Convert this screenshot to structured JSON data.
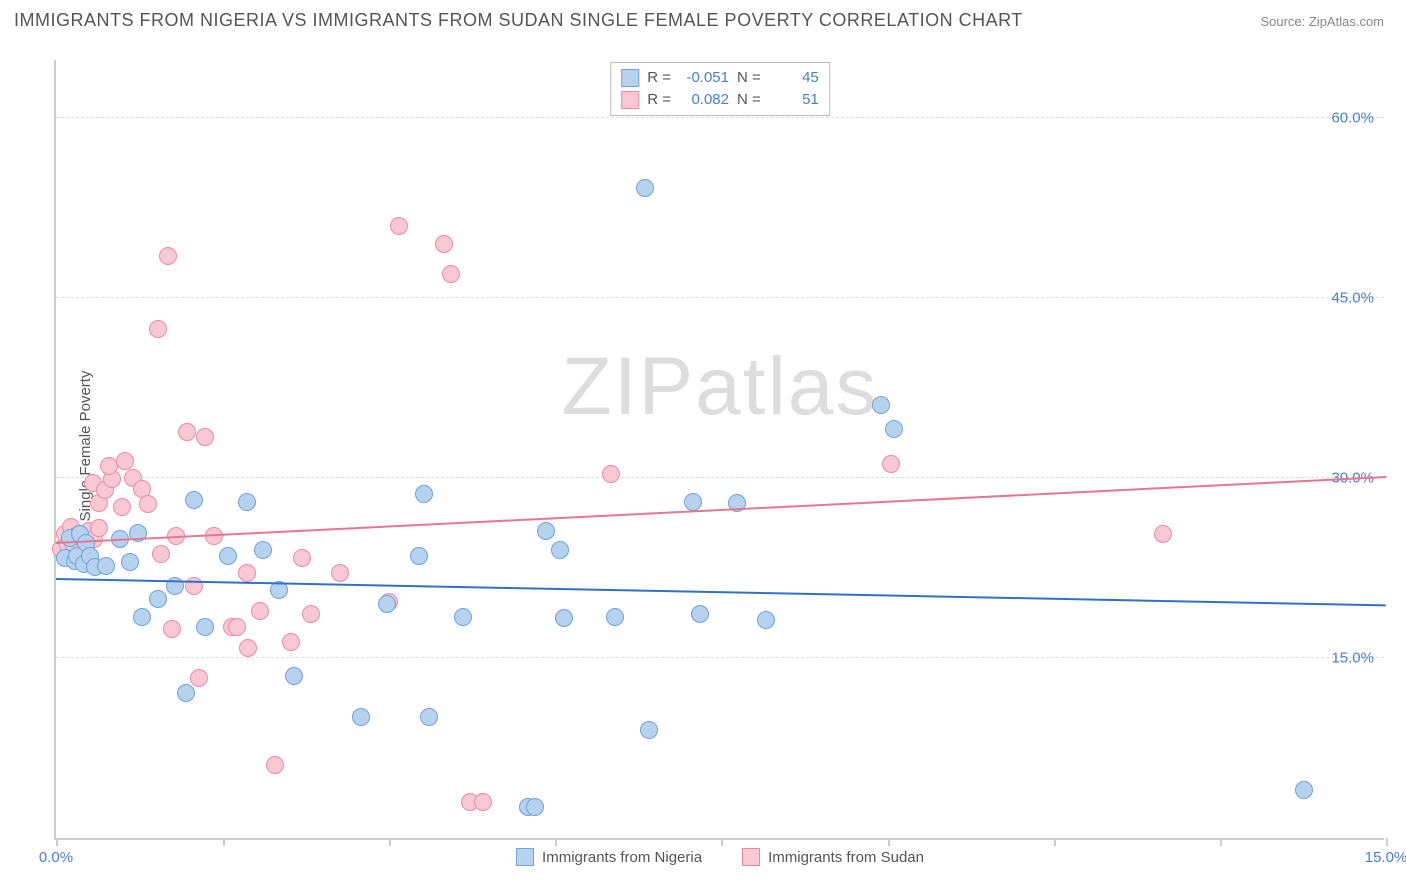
{
  "title": "IMMIGRANTS FROM NIGERIA VS IMMIGRANTS FROM SUDAN SINGLE FEMALE POVERTY CORRELATION CHART",
  "source_label": "Source: ZipAtlas.com",
  "ylabel": "Single Female Poverty",
  "watermark": "ZIPatlas",
  "chart": {
    "type": "scatter",
    "background_color": "#ffffff",
    "grid_color": "#dddddd",
    "border_color": "#cccccc",
    "tick_label_color": "#4a7ecc",
    "axis_label_color": "#555555",
    "xlim": [
      0,
      15
    ],
    "ylim": [
      0,
      65
    ],
    "xticks": [
      0,
      1.88,
      3.75,
      5.63,
      7.5,
      9.38,
      11.25,
      13.13,
      15
    ],
    "xtick_labels": {
      "0": "0.0%",
      "15": "15.0%"
    },
    "yticks": [
      15,
      30,
      45,
      60
    ],
    "ytick_labels": {
      "15": "15.0%",
      "30": "30.0%",
      "45": "45.0%",
      "60": "60.0%"
    },
    "point_radius": 9,
    "line_width": 2
  },
  "series": [
    {
      "name": "Immigrants from Nigeria",
      "fill": "#b7d2ef",
      "stroke": "#6ea3dd",
      "line_color": "#2f71c7",
      "R": "-0.051",
      "N": "45",
      "trend": {
        "x0": 0,
        "y0": 21.5,
        "x1": 15,
        "y1": 19.3
      },
      "points": [
        [
          0.1,
          23.3
        ],
        [
          0.16,
          25.0
        ],
        [
          0.21,
          23.1
        ],
        [
          0.24,
          23.5
        ],
        [
          0.27,
          25.3
        ],
        [
          0.32,
          22.8
        ],
        [
          0.34,
          24.6
        ],
        [
          0.38,
          23.5
        ],
        [
          0.44,
          22.6
        ],
        [
          0.56,
          22.7
        ],
        [
          0.72,
          24.9
        ],
        [
          0.83,
          23.0
        ],
        [
          0.97,
          18.4
        ],
        [
          1.15,
          19.9
        ],
        [
          1.34,
          21.0
        ],
        [
          1.47,
          12.1
        ],
        [
          1.56,
          28.2
        ],
        [
          1.68,
          17.6
        ],
        [
          1.94,
          23.5
        ],
        [
          2.15,
          28.0
        ],
        [
          2.33,
          24.0
        ],
        [
          2.51,
          20.7
        ],
        [
          2.68,
          13.5
        ],
        [
          3.44,
          10.1
        ],
        [
          3.73,
          19.5
        ],
        [
          4.09,
          23.5
        ],
        [
          4.15,
          28.7
        ],
        [
          4.21,
          10.1
        ],
        [
          4.59,
          18.4
        ],
        [
          5.32,
          2.6
        ],
        [
          5.4,
          2.6
        ],
        [
          5.53,
          25.6
        ],
        [
          5.68,
          24.0
        ],
        [
          5.73,
          18.3
        ],
        [
          6.3,
          18.4
        ],
        [
          6.64,
          54.2
        ],
        [
          6.69,
          9.0
        ],
        [
          7.18,
          28.0
        ],
        [
          7.26,
          18.7
        ],
        [
          7.68,
          27.9
        ],
        [
          8.01,
          18.2
        ],
        [
          9.3,
          36.1
        ],
        [
          9.45,
          34.1
        ],
        [
          14.07,
          4.0
        ],
        [
          0.92,
          25.4
        ]
      ]
    },
    {
      "name": "Immigrants from Sudan",
      "fill": "#f8c9d4",
      "stroke": "#ea8aa3",
      "line_color": "#e77790",
      "R": "0.082",
      "N": "51",
      "trend": {
        "x0": 0,
        "y0": 24.5,
        "x1": 15,
        "y1": 30.0
      },
      "points": [
        [
          0.06,
          24.1
        ],
        [
          0.1,
          25.3
        ],
        [
          0.14,
          24.4
        ],
        [
          0.17,
          25.9
        ],
        [
          0.19,
          24.6
        ],
        [
          0.23,
          25.2
        ],
        [
          0.26,
          25.3
        ],
        [
          0.29,
          25.0
        ],
        [
          0.33,
          24.7
        ],
        [
          0.37,
          25.6
        ],
        [
          0.43,
          24.9
        ],
        [
          0.49,
          25.8
        ],
        [
          0.42,
          29.6
        ],
        [
          0.48,
          27.9
        ],
        [
          0.55,
          29.0
        ],
        [
          0.63,
          29.9
        ],
        [
          0.74,
          27.6
        ],
        [
          0.6,
          31.0
        ],
        [
          0.78,
          31.4
        ],
        [
          0.87,
          30.0
        ],
        [
          0.97,
          29.1
        ],
        [
          1.04,
          27.8
        ],
        [
          1.18,
          23.7
        ],
        [
          1.15,
          42.4
        ],
        [
          1.26,
          48.5
        ],
        [
          1.31,
          17.4
        ],
        [
          1.35,
          25.2
        ],
        [
          1.48,
          33.8
        ],
        [
          1.56,
          21.0
        ],
        [
          1.61,
          13.3
        ],
        [
          1.68,
          33.4
        ],
        [
          1.78,
          25.2
        ],
        [
          1.98,
          17.6
        ],
        [
          2.04,
          17.6
        ],
        [
          2.15,
          22.1
        ],
        [
          2.17,
          15.8
        ],
        [
          2.3,
          18.9
        ],
        [
          2.47,
          6.1
        ],
        [
          2.65,
          16.3
        ],
        [
          2.77,
          23.3
        ],
        [
          2.88,
          18.7
        ],
        [
          3.2,
          22.1
        ],
        [
          3.75,
          19.7
        ],
        [
          3.87,
          51.0
        ],
        [
          4.38,
          49.5
        ],
        [
          4.45,
          47.0
        ],
        [
          4.67,
          3.0
        ],
        [
          4.82,
          3.0
        ],
        [
          6.26,
          30.3
        ],
        [
          9.42,
          31.2
        ],
        [
          12.49,
          25.3
        ]
      ]
    }
  ],
  "legend_stats": {
    "R_label": "R =",
    "N_label": "N ="
  }
}
